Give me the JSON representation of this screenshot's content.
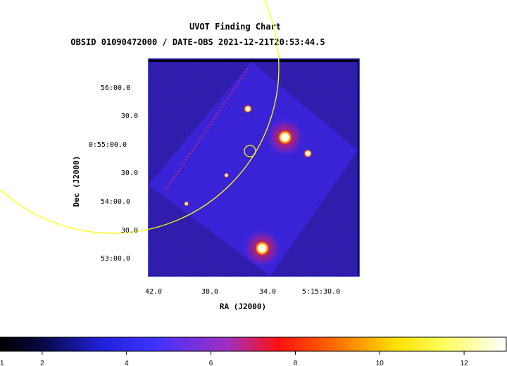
{
  "chart_data": {
    "type": "heatmap",
    "title": "UVOT Finding Chart",
    "subtitle": "OBSID 01090472000 / DATE-OBS 2021-12-21T20:53:44.5",
    "xlabel": "RA (J2000)",
    "ylabel": "Dec (J2000)",
    "x_ticks": [
      "42.0",
      "38.0",
      "34.0",
      "5:15:30.0"
    ],
    "y_ticks": [
      "56:00.0",
      "30.0",
      "0:55:00.0",
      "30.0",
      "54:00.0",
      "30.0",
      "53:00.0"
    ],
    "colorbar": {
      "colormap": "heat",
      "ticks": [
        "2",
        "4",
        "6",
        "8",
        "10",
        "12"
      ],
      "min": 1,
      "max": 13
    },
    "sources": [
      {
        "ra": "5:15:32.8",
        "dec": "0:55:10.0",
        "brightness": "high"
      },
      {
        "ra": "5:15:35.4",
        "dec": "0:55:40.0",
        "brightness": "medium"
      },
      {
        "ra": "5:15:31.2",
        "dec": "0:54:53.0",
        "brightness": "medium"
      },
      {
        "ra": "5:15:36.9",
        "dec": "0:54:30.0",
        "brightness": "low"
      },
      {
        "ra": "5:15:39.7",
        "dec": "0:54:00.0",
        "brightness": "low"
      },
      {
        "ra": "5:15:34.4",
        "dec": "0:53:13.0",
        "brightness": "high"
      }
    ],
    "overlays": [
      {
        "type": "circle",
        "label": "target",
        "color": "#ffff00"
      },
      {
        "type": "circle",
        "label": "error-region",
        "color": "#ffff00"
      }
    ],
    "colors": {
      "frame": "#1a1ab0",
      "background": "#000000",
      "overlay": "#ffff00"
    }
  }
}
